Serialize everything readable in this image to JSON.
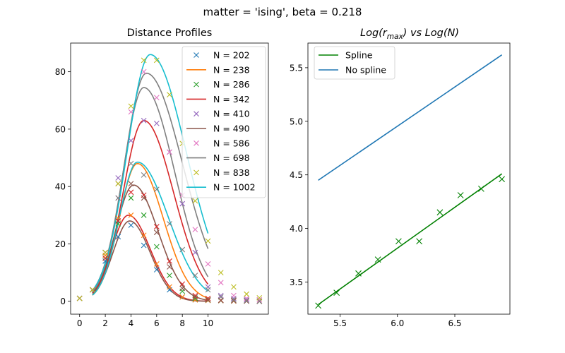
{
  "figure": {
    "suptitle": "matter = 'ising', beta = 0.218"
  },
  "colors": {
    "C0": "#1f77b4",
    "C1": "#ff7f0e",
    "C2": "#2ca02c",
    "C3": "#d62728",
    "C4": "#9467bd",
    "C5": "#8c564b",
    "C6": "#e377c2",
    "C7": "#7f7f7f",
    "C8": "#bcbd22",
    "C9": "#17becf",
    "green": "#008000"
  },
  "chart_data": [
    {
      "type": "line",
      "title": "Distance Profiles",
      "xlabel": "",
      "ylabel": "",
      "xlim": [
        -0.7,
        14.7
      ],
      "ylim": [
        -4.5,
        90
      ],
      "xticks": [
        0,
        2,
        4,
        6,
        8,
        10
      ],
      "yticks": [
        0,
        20,
        40,
        60,
        80
      ],
      "legend_position": "top-right",
      "legend": [
        {
          "label": "N = 202",
          "marker": "x",
          "color": "C0"
        },
        {
          "label": "N = 238",
          "marker": "line",
          "color": "C1"
        },
        {
          "label": "N = 286",
          "marker": "x",
          "color": "C2"
        },
        {
          "label": "N = 342",
          "marker": "line",
          "color": "C3"
        },
        {
          "label": "N = 410",
          "marker": "x",
          "color": "C4"
        },
        {
          "label": "N = 490",
          "marker": "line",
          "color": "C5"
        },
        {
          "label": "N = 586",
          "marker": "x",
          "color": "C6"
        },
        {
          "label": "N = 698",
          "marker": "line",
          "color": "C7"
        },
        {
          "label": "N = 838",
          "marker": "x",
          "color": "C8"
        },
        {
          "label": "N = 1002",
          "marker": "line",
          "color": "C9"
        }
      ],
      "scatter_series": [
        {
          "color": "C0",
          "x": [
            0,
            1,
            2,
            3,
            4,
            5,
            6,
            7,
            8,
            9,
            10,
            11,
            12,
            13,
            14
          ],
          "y": [
            1,
            4,
            14,
            22.5,
            26.5,
            19.5,
            11,
            4,
            1.5,
            0.5,
            0.3,
            0.2,
            0.1,
            0.1,
            0
          ]
        },
        {
          "color": "C1",
          "x": [
            0,
            1,
            2,
            3,
            4,
            5,
            6,
            7,
            8,
            9,
            10,
            11,
            12,
            13,
            14
          ],
          "y": [
            1,
            4,
            16,
            29,
            30,
            23,
            13,
            5,
            1.5,
            0.5,
            0.3,
            0.2,
            0.1,
            0.1,
            0
          ]
        },
        {
          "color": "C2",
          "x": [
            0,
            1,
            2,
            3,
            4,
            5,
            6,
            7,
            8,
            9,
            10,
            11,
            12,
            13,
            14
          ],
          "y": [
            1,
            4,
            15,
            27,
            36,
            30,
            19,
            9,
            3.5,
            1,
            0.5,
            0.3,
            0.2,
            0.1,
            0
          ]
        },
        {
          "color": "C3",
          "x": [
            0,
            1,
            2,
            3,
            4,
            5,
            6,
            7,
            8,
            9,
            10,
            11,
            12,
            13,
            14
          ],
          "y": [
            1,
            4,
            15,
            28,
            38,
            37,
            26,
            14,
            6,
            2,
            1,
            0.4,
            0.2,
            0.1,
            0
          ]
        },
        {
          "color": "C4",
          "x": [
            0,
            1,
            2,
            3,
            4,
            5,
            6,
            7,
            8,
            9,
            10,
            11,
            12,
            13,
            14
          ],
          "y": [
            1,
            4,
            17,
            43,
            56,
            63,
            62,
            52,
            34,
            17,
            5,
            2,
            1,
            0.5,
            0
          ]
        },
        {
          "color": "C5",
          "x": [
            0,
            1,
            2,
            3,
            4,
            5,
            6,
            7,
            8,
            9,
            10,
            11,
            12,
            13,
            14
          ],
          "y": [
            1,
            4,
            17,
            41,
            41,
            36,
            24,
            12,
            4.5,
            1.5,
            0.5,
            0.3,
            0.2,
            0.1,
            0
          ]
        },
        {
          "color": "C6",
          "x": [
            0,
            1,
            2,
            3,
            4,
            5,
            6,
            7,
            8,
            9,
            10,
            11,
            12,
            13,
            14
          ],
          "y": [
            1,
            4,
            17,
            36,
            66,
            80,
            71,
            52,
            37,
            25,
            13,
            6.5,
            2,
            1,
            0.5
          ]
        },
        {
          "color": "C7",
          "x": [
            0,
            1,
            2,
            3,
            4,
            5,
            6,
            7,
            8,
            9,
            10,
            11,
            12,
            13,
            14
          ],
          "y": [
            1,
            4,
            17,
            36,
            48,
            44,
            39,
            27,
            18,
            9,
            4,
            1.5,
            0.5,
            0.2,
            0
          ]
        },
        {
          "color": "C8",
          "x": [
            0,
            1,
            2,
            3,
            4,
            5,
            6,
            7,
            8,
            9,
            10,
            11,
            12,
            13,
            14
          ],
          "y": [
            1,
            4,
            17,
            41,
            68,
            84,
            84,
            72,
            55,
            35,
            21,
            10,
            5,
            2.5,
            1.2
          ]
        }
      ],
      "line_series": [
        {
          "color": "C1",
          "peak_x": 4.5,
          "peak_y": 48,
          "width_left": 1.4,
          "width_right": 2.0
        },
        {
          "color": "C3",
          "peak_x": 3.8,
          "peak_y": 30,
          "width_left": 1.3,
          "width_right": 1.7
        },
        {
          "color": "C3",
          "peak_x": 5.0,
          "peak_y": 63,
          "width_left": 1.6,
          "width_right": 2.3
        },
        {
          "color": "C5",
          "peak_x": 3.9,
          "peak_y": 28,
          "width_left": 1.3,
          "width_right": 1.6
        },
        {
          "color": "C5",
          "peak_x": 4.2,
          "peak_y": 40.5,
          "width_left": 1.4,
          "width_right": 1.9
        },
        {
          "color": "C7",
          "peak_x": 5.0,
          "peak_y": 74.5,
          "width_left": 1.6,
          "width_right": 2.4
        },
        {
          "color": "C7",
          "peak_x": 5.2,
          "peak_y": 79.5,
          "width_left": 1.7,
          "width_right": 2.8
        },
        {
          "color": "C9",
          "peak_x": 4.5,
          "peak_y": 48.5,
          "width_left": 1.4,
          "width_right": 2.4
        },
        {
          "color": "C9",
          "peak_x": 5.5,
          "peak_y": 86,
          "width_left": 1.8,
          "width_right": 2.8
        }
      ]
    },
    {
      "type": "line",
      "title": "Log(r_max) vs Log(N)",
      "xlabel": "",
      "ylabel": "",
      "xlim": [
        5.22,
        6.98
      ],
      "ylim": [
        3.2,
        5.73
      ],
      "xticks": [
        5.5,
        6.0,
        6.5
      ],
      "xtick_labels": [
        "5.5",
        "6.0",
        "6.5"
      ],
      "yticks": [
        3.5,
        4.0,
        4.5,
        5.0,
        5.5
      ],
      "ytick_labels": [
        "3.5",
        "4.0",
        "4.5",
        "5.0",
        "5.5"
      ],
      "legend_position": "top-left",
      "series": [
        {
          "name": "Spline",
          "color": "green",
          "x": [
            5.31,
            6.91
          ],
          "y": [
            3.29,
            4.51
          ]
        },
        {
          "name": "No spline",
          "color": "C0",
          "x": [
            5.31,
            6.91
          ],
          "y": [
            4.45,
            5.62
          ]
        }
      ],
      "scatter": {
        "color": "green",
        "x": [
          5.31,
          5.47,
          5.66,
          5.83,
          6.01,
          6.19,
          6.37,
          6.55,
          6.73,
          6.91
        ],
        "y": [
          3.28,
          3.4,
          3.58,
          3.71,
          3.88,
          3.88,
          4.15,
          4.31,
          4.37,
          4.46
        ]
      }
    }
  ]
}
